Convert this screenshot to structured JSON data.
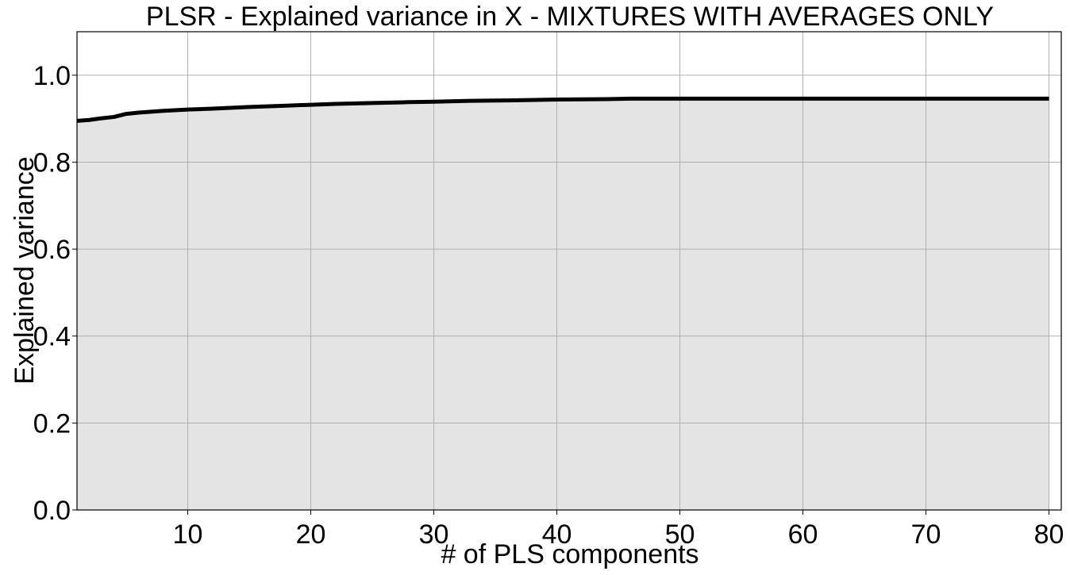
{
  "chart_data": {
    "type": "area",
    "title": "PLSR - Explained variance in X - MIXTURES WITH AVERAGES ONLY",
    "xlabel": "# of PLS components",
    "ylabel": "Explained variance",
    "xlim": [
      1,
      81
    ],
    "ylim": [
      0,
      1.1
    ],
    "xticks": [
      10,
      20,
      30,
      40,
      50,
      60,
      70,
      80
    ],
    "yticks": [
      0.0,
      0.2,
      0.4,
      0.6,
      0.8,
      1.0
    ],
    "grid": true,
    "x": [
      1,
      2,
      3,
      4,
      5,
      6,
      8,
      10,
      12,
      15,
      18,
      20,
      22,
      25,
      28,
      30,
      33,
      36,
      40,
      44,
      46,
      50,
      55,
      60,
      65,
      70,
      75,
      80
    ],
    "values": [
      0.895,
      0.897,
      0.901,
      0.904,
      0.911,
      0.914,
      0.918,
      0.921,
      0.923,
      0.927,
      0.93,
      0.932,
      0.934,
      0.936,
      0.938,
      0.939,
      0.941,
      0.942,
      0.944,
      0.945,
      0.946,
      0.946,
      0.946,
      0.946,
      0.946,
      0.946,
      0.946,
      0.946
    ],
    "line_color": "#000000",
    "fill_color": "#e4e4e4",
    "grid_color": "#b0b0b0"
  }
}
